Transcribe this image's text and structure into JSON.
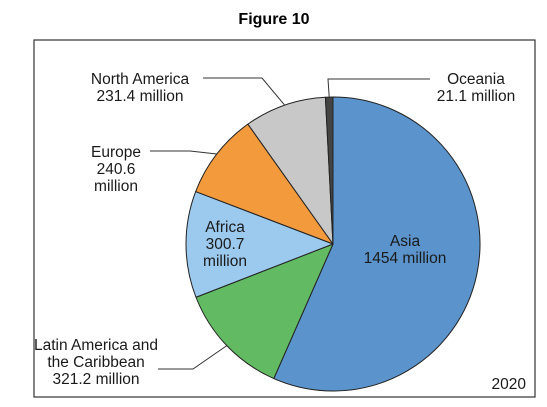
{
  "figure_title": "Figure 10",
  "chart_data": {
    "type": "pie",
    "year_label": "2020",
    "units": "million",
    "slices": [
      {
        "name": "Asia",
        "value": 1454,
        "value_text": "1454 million",
        "color": "#5b94cc"
      },
      {
        "name": "Latin America and the Caribbean",
        "name_lines": [
          "Latin America and",
          "the Caribbean"
        ],
        "value": 321.2,
        "value_text": "321.2 million",
        "color": "#62bb62"
      },
      {
        "name": "Africa",
        "value": 300.7,
        "value_text": "300.7",
        "value_unit": "million",
        "color": "#9ccaee"
      },
      {
        "name": "Europe",
        "value": 240.6,
        "value_text": "240.6",
        "value_unit": "million",
        "color": "#f39a3c"
      },
      {
        "name": "North America",
        "value": 231.4,
        "value_text": "231.4 million",
        "color": "#c8c8c8"
      },
      {
        "name": "Oceania",
        "value": 21.1,
        "value_text": "21.1 million",
        "color": "#444444"
      }
    ]
  }
}
